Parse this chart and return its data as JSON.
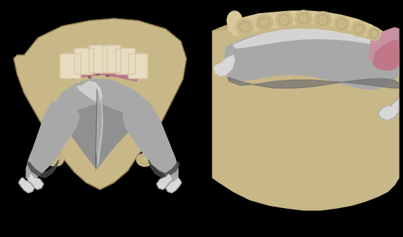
{
  "background_color": "#000000",
  "figure_width": 5.84,
  "figure_height": 3.44,
  "dpi": 100,
  "colors": {
    "background": "#000000",
    "stone_tan": "#c8b888",
    "stone_dark": "#b0a070",
    "stone_light": "#d8c898",
    "metal_silver": "#a8a8a8",
    "metal_bright": "#d8d8d8",
    "metal_dark": "#606060",
    "metal_sheen": "#e8e8e8",
    "acrylic_pink": "#b87888",
    "acrylic_pink2": "#c890a0",
    "teeth_cream": "#e8dcc0",
    "teeth_white": "#f0ead8"
  }
}
